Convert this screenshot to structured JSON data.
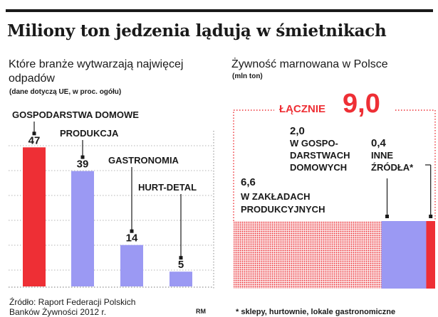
{
  "title": "Miliony ton jedzenia lądują w śmietnikach",
  "chart_data": [
    {
      "type": "bar",
      "title": "Które branże wytwarzają najwięcej odpadów",
      "subtitle": "(dane dotyczą UE, w proc. ogółu)",
      "categories": [
        "GOSPODARSTWA  DOMOWE",
        "PRODUKCJA",
        "GASTRONOMIA",
        "HURT-DETAL"
      ],
      "values": [
        47,
        39,
        14,
        5
      ],
      "value_labels": [
        "47",
        "39",
        "14",
        "5"
      ],
      "ylim": [
        0,
        55
      ],
      "grid": true,
      "colors": [
        "#ee2f35",
        "#9b99f3",
        "#9b99f3",
        "#9b99f3"
      ]
    },
    {
      "type": "bar",
      "orientation": "stacked-horizontal",
      "title": "Żywność marnowana w Polsce",
      "subtitle": "(mln ton)",
      "total_label": "ŁĄCZNIE",
      "total_value": "9,0",
      "total": 9.0,
      "segments": [
        {
          "value": 6.6,
          "value_label": "6,6",
          "label": "W ZAKŁADACH PRODUKCYJNYCH",
          "label_lines": [
            "W ZAKŁADACH",
            "PRODUKCYJNYCH"
          ],
          "color": "#ee2f35",
          "pattern": "dotted"
        },
        {
          "value": 2.0,
          "value_label": "2,0",
          "label": "W GOSPODARSTWACH DOMOWYCH",
          "label_lines": [
            "W GOSPO-",
            "DARSTWACH",
            "DOMOWYCH"
          ],
          "color": "#9b99f3"
        },
        {
          "value": 0.4,
          "value_label": "0,4",
          "label": "INNE ŹRÓDŁA*",
          "label_lines": [
            "INNE",
            "ŹRÓDŁA*"
          ],
          "color": "#ee2f35"
        }
      ],
      "footnote": "* sklepy, hurtownie, lokale gastronomiczne"
    }
  ],
  "source": {
    "line1": "Źródło: Raport Federacji Polskich",
    "line2": "Banków Żywności 2012 r."
  },
  "credit": "RM"
}
